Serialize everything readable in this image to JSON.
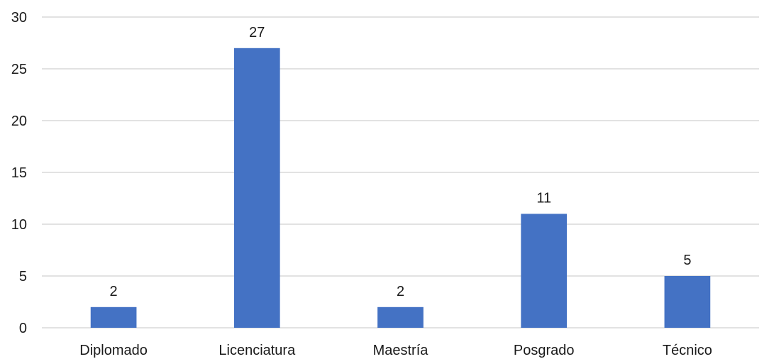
{
  "chart_data": {
    "type": "bar",
    "categories": [
      "Diplomado",
      "Licenciatura",
      "Maestría",
      "Posgrado",
      "Técnico"
    ],
    "values": [
      2,
      27,
      2,
      11,
      5
    ],
    "title": "",
    "xlabel": "",
    "ylabel": "",
    "ylim": [
      0,
      30
    ],
    "yticks": [
      0,
      5,
      10,
      15,
      20,
      25,
      30
    ],
    "grid": true,
    "legend": "none",
    "data_labels": true,
    "bar_color": "#4472c4"
  }
}
